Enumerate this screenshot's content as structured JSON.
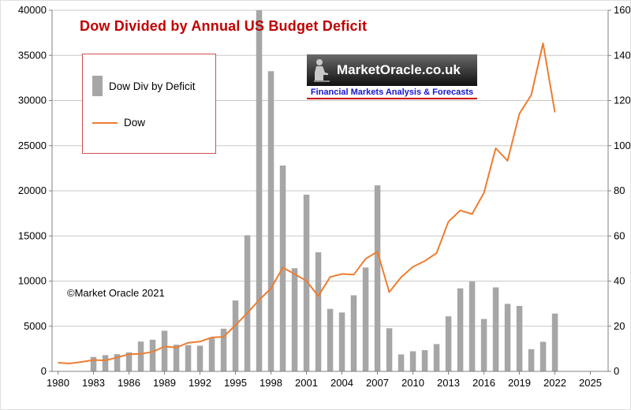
{
  "title": "Dow Divided by Annual US Budget Deficit",
  "watermark": "©Market Oracle 2021",
  "logo": {
    "name": "MarketOracle.co.uk",
    "tagline": "Financial Markets Analysis & Forecasts"
  },
  "legend": {
    "bar_label": "Dow Div by Deficit",
    "line_label": "Dow"
  },
  "colors": {
    "bar": "#a6a6a6",
    "line": "#ed7d31",
    "title": "#c00000",
    "grid": "#c8c8c8",
    "axis": "#808080",
    "legend_border": "#d05050",
    "tagline_text": "#1515cc",
    "tagline_underline": "#cc0000"
  },
  "chart_data": {
    "type": "bar+line",
    "title": "Dow Divided by Annual US Budget Deficit",
    "x": [
      1980,
      1981,
      1982,
      1983,
      1984,
      1985,
      1986,
      1987,
      1988,
      1989,
      1990,
      1991,
      1992,
      1993,
      1994,
      1995,
      1996,
      1997,
      1998,
      1999,
      2000,
      2001,
      2002,
      2003,
      2004,
      2005,
      2006,
      2007,
      2008,
      2009,
      2010,
      2011,
      2012,
      2013,
      2014,
      2015,
      2016,
      2017,
      2018,
      2019,
      2020,
      2021,
      2022
    ],
    "series": [
      {
        "name": "Dow Div by Deficit",
        "type": "bar",
        "axis": "right",
        "values": [
          null,
          null,
          null,
          6.4,
          7.2,
          7.6,
          8.4,
          13.2,
          14,
          18,
          11.8,
          11.6,
          11.4,
          14.7,
          18.9,
          31.4,
          60.3,
          160,
          133,
          91.2,
          45.7,
          78.3,
          52.8,
          27.7,
          26.1,
          33.7,
          46,
          82.4,
          19.1,
          7.5,
          8.9,
          9.4,
          12.1,
          24.4,
          36.8,
          39.8,
          23.2,
          37.2,
          29.9,
          29,
          9.8,
          13.1,
          25.6
        ]
      },
      {
        "name": "Dow",
        "type": "line",
        "axis": "left",
        "values": [
          964,
          875,
          1047,
          1259,
          1212,
          1547,
          1896,
          1939,
          2169,
          2753,
          2634,
          3169,
          3301,
          3754,
          3834,
          5117,
          6448,
          7908,
          9181,
          11497,
          10788,
          10021,
          8341,
          10454,
          10783,
          10718,
          12463,
          13265,
          8776,
          10428,
          11578,
          12218,
          13104,
          16577,
          17823,
          17425,
          19763,
          24719,
          23327,
          28538,
          30606,
          36338,
          28700
        ]
      }
    ],
    "left_axis": {
      "min": 0,
      "max": 40000,
      "step": 5000
    },
    "right_axis": {
      "min": 0,
      "max": 160,
      "step": 20
    },
    "x_axis": {
      "tick_start": 1980,
      "tick_end": 2025,
      "tick_step": 3,
      "domain_min": 1979.5,
      "domain_max": 2026.5
    },
    "grid": "horizontal",
    "legend_position": "upper-left"
  }
}
